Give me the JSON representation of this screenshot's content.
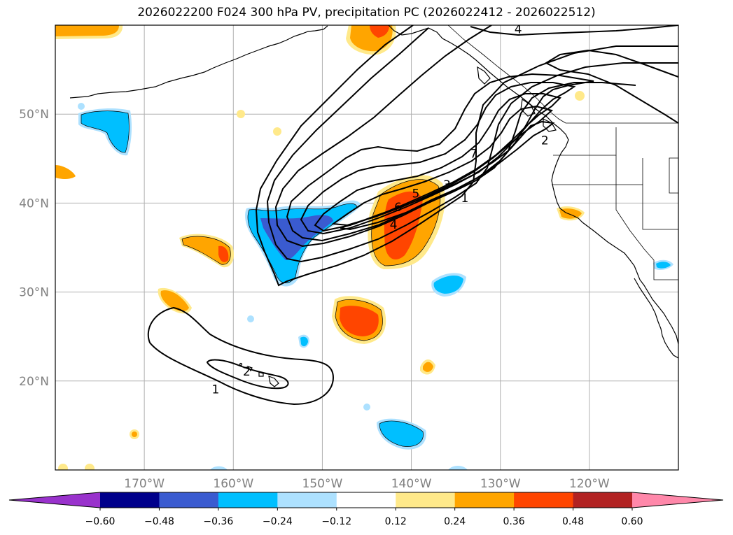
{
  "title": "2026022200 F024 300 hPa PV, precipitation PC (2026022412 - 2026022512)",
  "map": {
    "projection": "equirectangular",
    "lon_range": [
      -180,
      -110
    ],
    "lat_range": [
      10,
      60
    ],
    "grid": true,
    "lon_ticks": [
      {
        "lon": -170,
        "label": "170°W"
      },
      {
        "lon": -160,
        "label": "160°W"
      },
      {
        "lon": -150,
        "label": "150°W"
      },
      {
        "lon": -140,
        "label": "140°W"
      },
      {
        "lon": -130,
        "label": "130°W"
      },
      {
        "lon": -120,
        "label": "120°W"
      }
    ],
    "lat_ticks": [
      {
        "lat": 50,
        "label": "50°N"
      },
      {
        "lat": 40,
        "label": "40°N"
      },
      {
        "lat": 30,
        "label": "30°N"
      },
      {
        "lat": 20,
        "label": "20°N"
      }
    ]
  },
  "pv_contour_labels": [
    {
      "text": "4",
      "lon": -128.0,
      "lat": 59.5
    },
    {
      "text": "7",
      "lon": -133.0,
      "lat": 45.5
    },
    {
      "text": "2",
      "lon": -125.0,
      "lat": 47.0
    },
    {
      "text": "3",
      "lon": -136.0,
      "lat": 42.0
    },
    {
      "text": "1",
      "lon": -134.0,
      "lat": 40.5
    },
    {
      "text": "5",
      "lon": -139.5,
      "lat": 41.0
    },
    {
      "text": "6",
      "lon": -141.5,
      "lat": 39.5
    },
    {
      "text": "4",
      "lon": -142.0,
      "lat": 37.5
    },
    {
      "text": "2",
      "lon": -158.5,
      "lat": 21.0
    },
    {
      "text": "1",
      "lon": -162.0,
      "lat": 19.0
    }
  ],
  "colorbar": {
    "colors": [
      "#9932CC",
      "#00008B",
      "#3A5BD0",
      "#00BFFF",
      "#ADE1FF",
      "#FFFFFF",
      "#FFE98A",
      "#FFA500",
      "#FF4500",
      "#B22222",
      "#FF88AA"
    ],
    "ticks": [
      "−0.60",
      "−0.48",
      "−0.36",
      "−0.24",
      "−0.12",
      "0.12",
      "0.24",
      "0.36",
      "0.48",
      "0.60"
    ]
  }
}
